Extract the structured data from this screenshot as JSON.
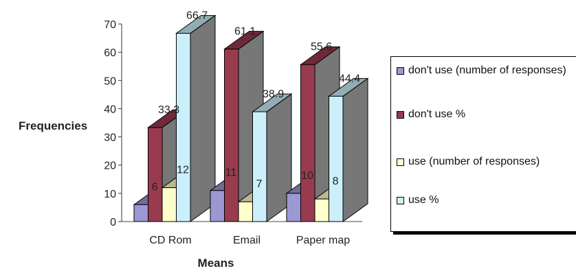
{
  "chart_data": {
    "type": "bar",
    "style": "3d-clustered",
    "categories": [
      "CD Rom",
      "Email",
      "Paper map"
    ],
    "series": [
      {
        "name": "don't use (number of responses)",
        "values": [
          6,
          11,
          10
        ],
        "color": "#9b98d4",
        "data_labels": [
          "6",
          "11",
          "10"
        ]
      },
      {
        "name": "don't use %",
        "values": [
          33.3,
          61.1,
          55.6
        ],
        "color": "#993b4f",
        "data_labels": [
          "33.3",
          "61.1",
          "55.6"
        ]
      },
      {
        "name": "use (number of responses)",
        "values": [
          12,
          7,
          8
        ],
        "color": "#ffffcc",
        "data_labels": [
          "12",
          "7",
          "8"
        ]
      },
      {
        "name": "use %",
        "values": [
          66.7,
          38.9,
          44.4
        ],
        "color": "#ccf0fb",
        "data_labels": [
          "66.7",
          "38.9",
          "44.4"
        ]
      }
    ],
    "xlabel": "Means",
    "ylabel": "Frequencies",
    "ylim": [
      0,
      70
    ],
    "yticks": [
      "0",
      "10",
      "20",
      "30",
      "40",
      "50",
      "60",
      "70"
    ],
    "grid": false,
    "legend_position": "right"
  }
}
